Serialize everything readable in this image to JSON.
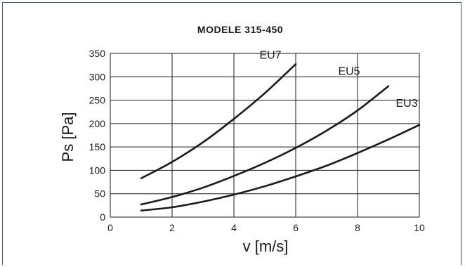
{
  "chart_data": {
    "type": "line",
    "title": "MODELE 315-450",
    "xlabel": "v [m/s]",
    "ylabel": "Ps [Pa]",
    "xlim": [
      0,
      10
    ],
    "ylim": [
      0,
      350
    ],
    "xticks": [
      0,
      2,
      4,
      6,
      8,
      10
    ],
    "yticks": [
      0,
      50,
      100,
      150,
      200,
      250,
      300,
      350
    ],
    "grid": true,
    "series": [
      {
        "name": "EU7",
        "x": [
          1,
          2,
          3,
          4,
          5,
          6
        ],
        "y": [
          83,
          118,
          160,
          210,
          265,
          327
        ]
      },
      {
        "name": "EU5",
        "x": [
          1,
          2,
          3,
          4,
          5,
          6,
          7,
          8,
          9
        ],
        "y": [
          27,
          43,
          63,
          88,
          116,
          148,
          185,
          228,
          280
        ]
      },
      {
        "name": "EU3",
        "x": [
          1,
          2,
          3,
          4,
          5,
          6,
          7,
          8,
          9,
          10
        ],
        "y": [
          14,
          21,
          33,
          48,
          66,
          87,
          110,
          137,
          166,
          197
        ]
      }
    ]
  }
}
